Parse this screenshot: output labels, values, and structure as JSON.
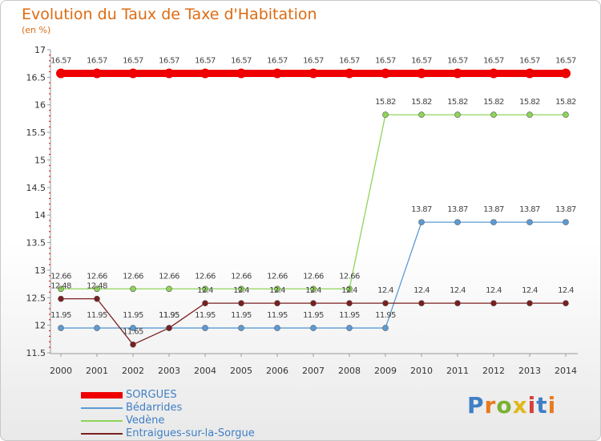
{
  "chart_data": {
    "type": "line",
    "title": "Evolution du Taux de Taxe d'Habitation",
    "subtitle": "(en %)",
    "x": [
      "2000",
      "2001",
      "2002",
      "2003",
      "2004",
      "2005",
      "2006",
      "2007",
      "2008",
      "2009",
      "2010",
      "2011",
      "2012",
      "2013",
      "2014"
    ],
    "ylim": [
      11.5,
      17
    ],
    "yticks": [
      "11.5",
      "12",
      "12.5",
      "13",
      "13.5",
      "14",
      "14.5",
      "15",
      "15.5",
      "16",
      "16.5",
      "17"
    ],
    "series": [
      {
        "name": "SORGUES",
        "color": "#ee0000",
        "values": [
          16.57,
          16.57,
          16.57,
          16.57,
          16.57,
          16.57,
          16.57,
          16.57,
          16.57,
          16.57,
          16.57,
          16.57,
          16.57,
          16.57,
          16.57
        ]
      },
      {
        "name": "Bédarrides",
        "color": "#5b9bd5",
        "values": [
          11.95,
          11.95,
          11.95,
          11.95,
          11.95,
          11.95,
          11.95,
          11.95,
          11.95,
          11.95,
          13.87,
          13.87,
          13.87,
          13.87,
          13.87
        ]
      },
      {
        "name": "Vedène",
        "color": "#8fd45a",
        "values": [
          12.66,
          12.66,
          12.66,
          12.66,
          12.66,
          12.66,
          12.66,
          12.66,
          12.66,
          15.82,
          15.82,
          15.82,
          15.82,
          15.82,
          15.82
        ]
      },
      {
        "name": "Entraigues-sur-la-Sorgue",
        "color": "#7a1f1f",
        "values": [
          12.48,
          12.48,
          11.65,
          11.95,
          12.4,
          12.4,
          12.4,
          12.4,
          12.4,
          12.4,
          12.4,
          12.4,
          12.4,
          12.4,
          12.4
        ]
      }
    ],
    "data_labels": {
      "SORGUES": [
        "16.57",
        "16.57",
        "16.57",
        "16.57",
        "16.57",
        "16.57",
        "16.57",
        "16.57",
        "16.57",
        "16.57",
        "16.57",
        "16.57",
        "16.57",
        "16.57",
        "16.57"
      ],
      "Bédarrides": [
        "11.95",
        "11.95",
        "11.95",
        "11.95",
        "11.95",
        "11.95",
        "11.95",
        "11.95",
        "11.95",
        "11.95",
        "13.87",
        "13.87",
        "13.87",
        "13.87",
        "13.87"
      ],
      "Vedène": [
        "12.66",
        "12.66",
        "12.66",
        "12.66",
        "12.66",
        "12.66",
        "12.66",
        "12.66",
        "12.66",
        "15.82",
        "15.82",
        "15.82",
        "15.82",
        "15.82",
        "15.82"
      ],
      "Entraigues-sur-la-Sorgue": [
        "12.48",
        "12.48",
        "11.65",
        "11.95",
        "12.4",
        "12.4",
        "12.4",
        "12.4",
        "12.4",
        "12.4",
        "12.4",
        "12.4",
        "12.4",
        "12.4",
        "12.4"
      ]
    },
    "legend": [
      "SORGUES",
      "Bédarrides",
      "Vedène",
      "Entraigues-sur-la-Sorgue"
    ],
    "legend_position": "bottom-left",
    "grid": false
  },
  "branding": {
    "logo_text": "Proxiti",
    "logo_letters": [
      "P",
      "r",
      "o",
      "x",
      "i",
      "t",
      "i"
    ]
  }
}
